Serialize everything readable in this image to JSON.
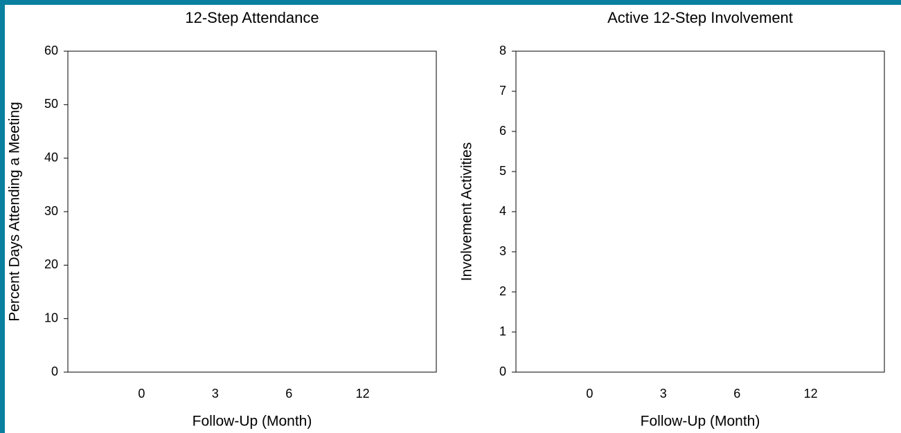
{
  "chart_data": [
    {
      "type": "line",
      "title": "12-Step Attendance",
      "x_label": "Follow-Up (Month)",
      "y_label": "Percent Days Attending a Meeting",
      "categories": [
        "0",
        "3",
        "6",
        "12"
      ],
      "ylim": [
        0,
        60
      ],
      "yticks": [
        0,
        10,
        20,
        30,
        40,
        50,
        60
      ],
      "grid": false
    },
    {
      "type": "line",
      "title": "Active 12-Step Involvement",
      "x_label": "Follow-Up (Month)",
      "y_label": "Involvement Activities",
      "categories": [
        "0",
        "3",
        "6",
        "12"
      ],
      "ylim": [
        0,
        8
      ],
      "yticks": [
        0,
        1,
        2,
        3,
        4,
        5,
        6,
        7,
        8
      ],
      "grid": false
    }
  ]
}
